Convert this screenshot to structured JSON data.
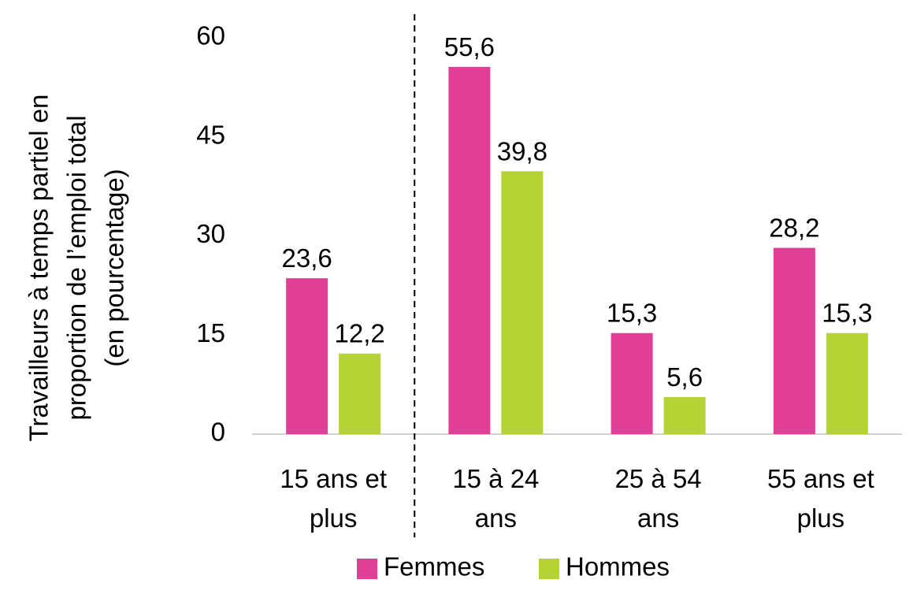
{
  "chart_data": {
    "type": "bar",
    "title": "",
    "ylabel_lines": [
      "Travailleurs à temps partiel en",
      "proportion de l’emploi total",
      "(en pourcentage)"
    ],
    "categories": [
      [
        "15 ans et",
        "plus"
      ],
      [
        "15 à 24",
        "ans"
      ],
      [
        "25 à 54",
        "ans"
      ],
      [
        "55 ans et",
        "plus"
      ]
    ],
    "series": [
      {
        "name": "Femmes",
        "color": "#e03e97",
        "values": [
          23.6,
          55.6,
          15.3,
          28.2
        ],
        "labels": [
          "23,6",
          "55,6",
          "15,3",
          "28,2"
        ]
      },
      {
        "name": "Hommes",
        "color": "#b5d334",
        "values": [
          12.2,
          39.8,
          5.6,
          15.3
        ],
        "labels": [
          "12,2",
          "39,8",
          "5,6",
          "15,3"
        ]
      }
    ],
    "yticks": [
      0,
      15,
      30,
      45,
      60
    ],
    "ylim": [
      0,
      60
    ],
    "grid": false,
    "separator_after_category": 0,
    "legend_position": "bottom"
  }
}
